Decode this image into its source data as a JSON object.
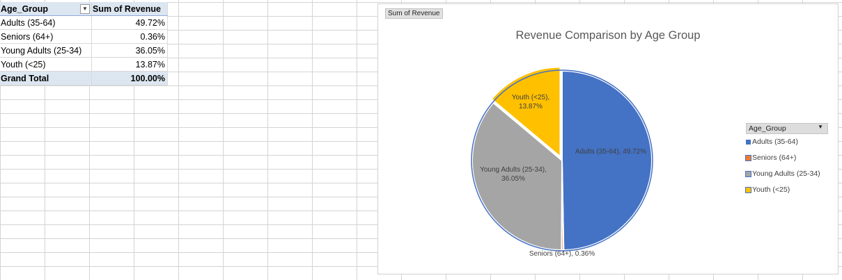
{
  "pivot": {
    "headers": [
      "Age_Group",
      "Sum of Revenue"
    ],
    "rows": [
      {
        "label": "Adults (35-64)",
        "value": "49.72%"
      },
      {
        "label": "Seniors (64+)",
        "value": "0.36%"
      },
      {
        "label": "Young Adults (25-34)",
        "value": "36.05%"
      },
      {
        "label": "Youth (<25)",
        "value": "13.87%"
      }
    ],
    "total": {
      "label": "Grand Total",
      "value": "100.00%"
    }
  },
  "chart": {
    "field_button": "Sum of Revenue",
    "legend_title": "Age_Group"
  },
  "chart_data": {
    "type": "pie",
    "title": "Revenue Comparison by Age Group",
    "categories": [
      "Adults (35-64)",
      "Seniors (64+)",
      "Young Adults (25-34)",
      "Youth (<25)"
    ],
    "values": [
      49.72,
      0.36,
      36.05,
      13.87
    ],
    "unit": "%",
    "data_labels": [
      "Adults (35-64), 49.72%",
      "Seniors (64+), 0.36%",
      "Young Adults (25-34), 36.05%",
      "Youth (<25), 13.87%"
    ],
    "colors": [
      "#4472c4",
      "#ed7d31",
      "#a5a5a5",
      "#ffc000"
    ],
    "legend_position": "right"
  }
}
